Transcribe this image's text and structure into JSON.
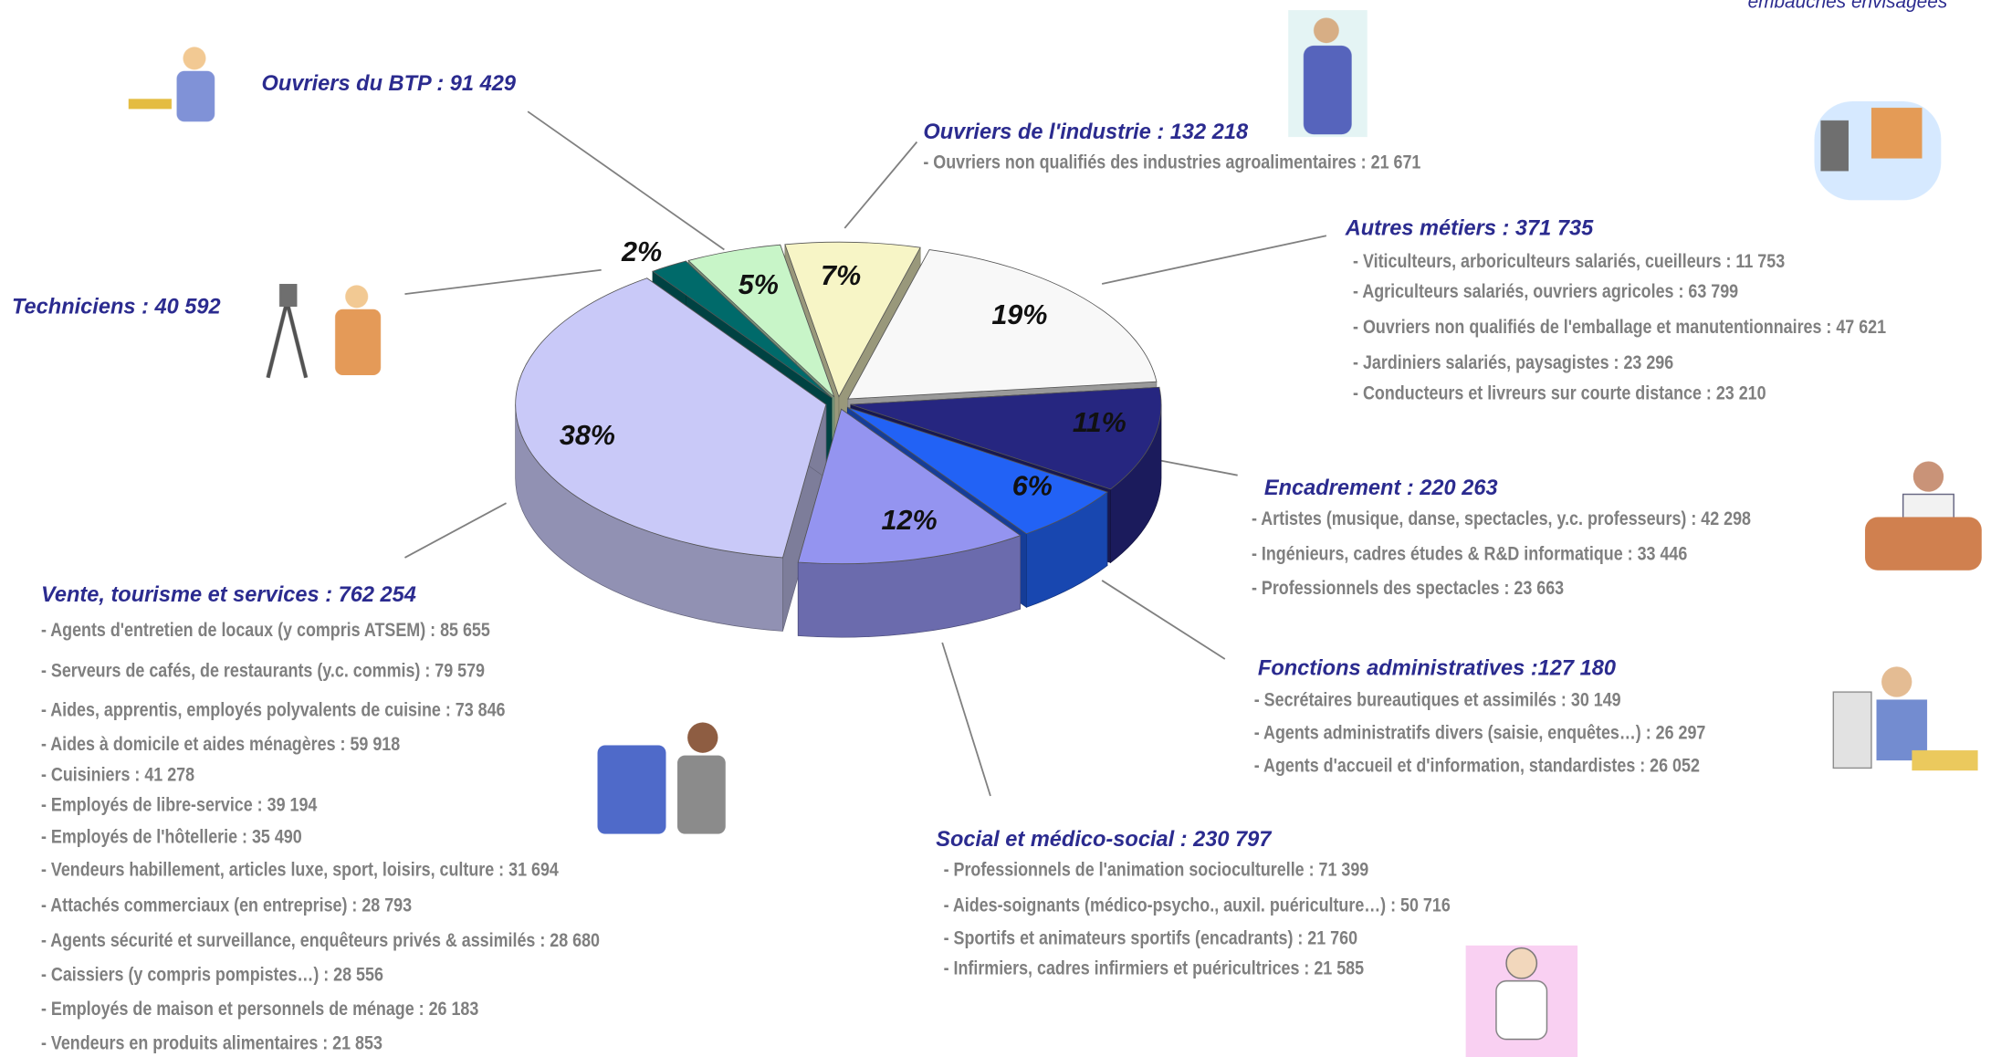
{
  "chart_data": {
    "type": "pie",
    "note": "embauches envisagées",
    "categories": [
      "Ouvriers de l'industrie : 132 218",
      "Autres métiers : 371 735",
      "Encadrement : 220 263",
      "Fonctions administratives :127 180",
      "Social et médico-social : 230 797",
      "Vente, tourisme et services : 762 254",
      "Techniciens : 40 592",
      "Ouvriers du BTP : 91 429"
    ],
    "values": [
      7,
      19,
      11,
      6,
      12,
      38,
      2,
      5
    ],
    "value_labels": [
      "7%",
      "19%",
      "11%",
      "6%",
      "12%",
      "38%",
      "2%",
      "5%"
    ],
    "colors": [
      "#f7f5c6",
      "#f8f8f8",
      "#262680",
      "#2262f5",
      "#9494f0",
      "#c9c9f8",
      "#006a6a",
      "#c8f5c8"
    ],
    "details": [
      [
        "- Ouvriers non qualifiés des industries agroalimentaires : 21 671"
      ],
      [
        "- Viticulteurs, arboriculteurs salariés, cueilleurs : 11 753",
        "- Agriculteurs salariés, ouvriers agricoles : 63 799",
        "- Ouvriers non qualifiés de l'emballage et manutentionnaires : 47 621",
        "- Jardiniers salariés, paysagistes : 23 296",
        "- Conducteurs et livreurs sur courte distance : 23 210"
      ],
      [
        "- Artistes (musique, danse, spectacles, y.c. professeurs) : 42 298",
        "- Ingénieurs, cadres études & R&D informatique : 33 446",
        "- Professionnels des spectacles : 23 663"
      ],
      [
        "- Secrétaires bureautiques et assimilés : 30 149",
        "- Agents administratifs divers (saisie, enquêtes…) : 26 297",
        "- Agents d'accueil et d'information, standardistes : 26 052"
      ],
      [
        "- Professionnels de l'animation socioculturelle : 71 399",
        "- Aides-soignants (médico-psycho., auxil. puériculture…) : 50 716",
        "- Sportifs et animateurs sportifs (encadrants) : 21 760",
        "- Infirmiers, cadres infirmiers et puéricultrices : 21 585"
      ],
      [
        "- Agents d'entretien de locaux (y compris ATSEM) : 85 655",
        "- Serveurs de cafés, de restaurants (y.c. commis) : 79 579",
        "- Aides, apprentis, employés polyvalents de cuisine : 73 846",
        "- Aides à domicile et aides ménagères : 59 918",
        "- Cuisiniers : 41 278",
        "- Employés de libre-service : 39 194",
        "- Employés de l'hôtellerie : 35 490",
        "- Vendeurs habillement, articles luxe, sport, loisirs, culture : 31 694",
        "- Attachés commerciaux (en entreprise) : 28 793",
        "- Agents sécurité et surveillance, enquêteurs privés & assimilés : 28 680",
        "- Caissiers (y compris pompistes…) : 28 556",
        "- Employés de maison et personnels de ménage : 26 183",
        "- Vendeurs en produits alimentaires : 21 853"
      ],
      [],
      []
    ]
  }
}
